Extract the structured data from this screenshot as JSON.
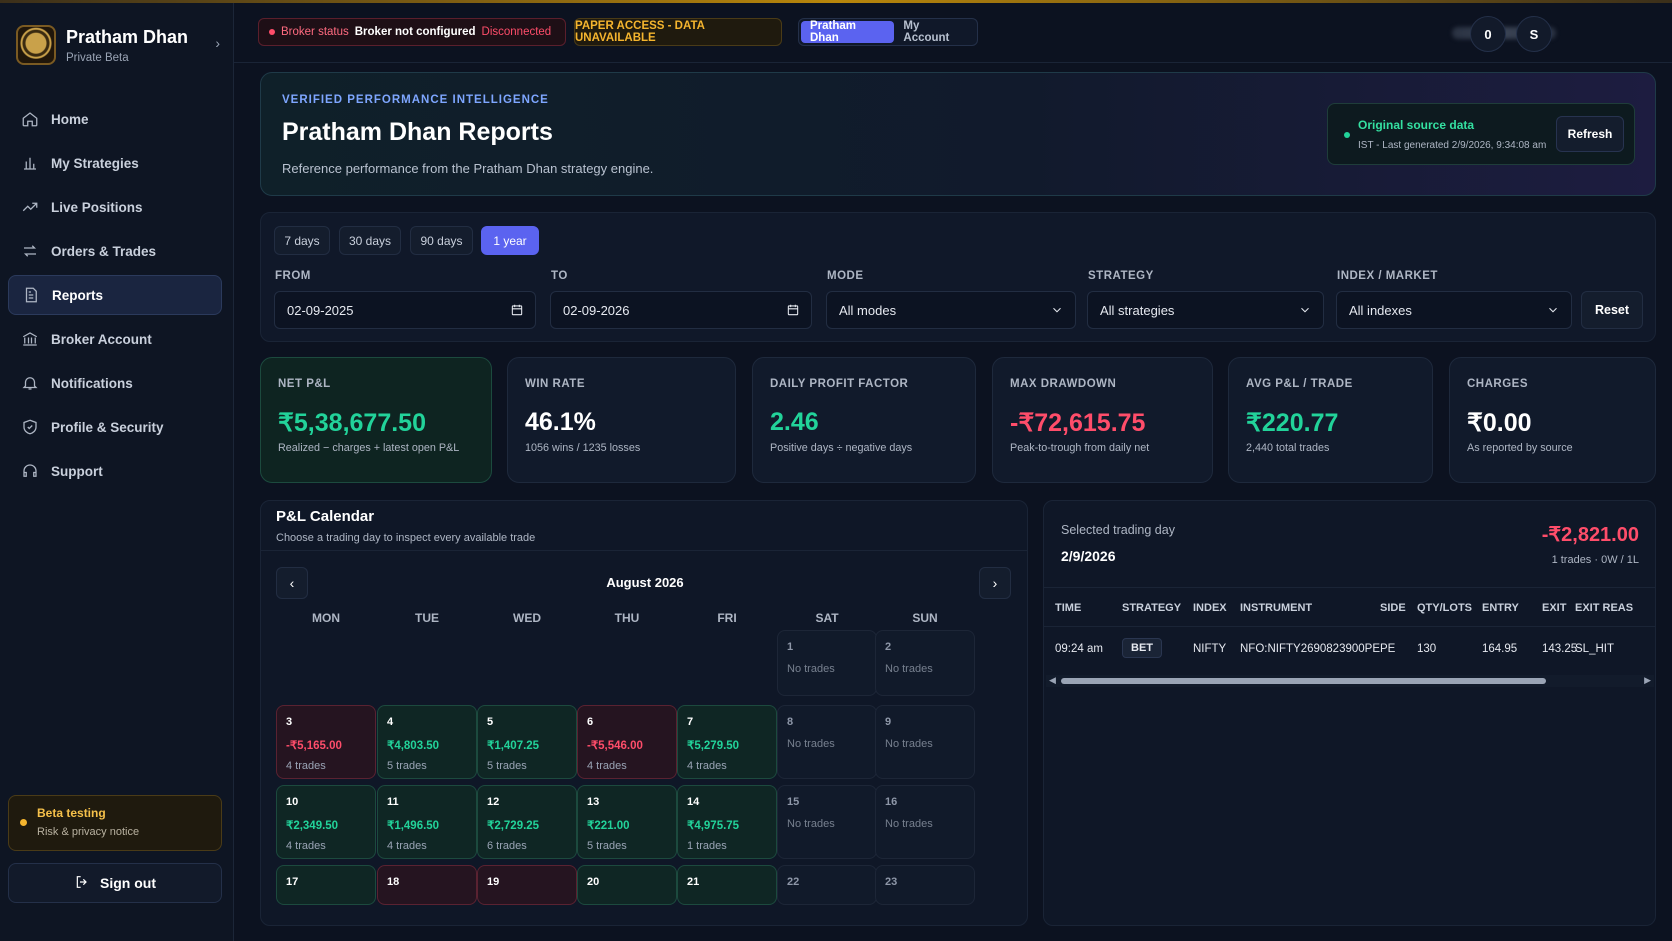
{
  "sidebar": {
    "brand": {
      "name": "Pratham Dhan",
      "sub": "Private Beta"
    },
    "items": [
      {
        "label": "Home",
        "icon": "home-icon"
      },
      {
        "label": "My Strategies",
        "icon": "bar-chart-icon"
      },
      {
        "label": "Live Positions",
        "icon": "trending-up-icon"
      },
      {
        "label": "Orders & Trades",
        "icon": "swap-icon"
      },
      {
        "label": "Reports",
        "icon": "document-icon",
        "active": true
      },
      {
        "label": "Broker Account",
        "icon": "bank-icon"
      },
      {
        "label": "Notifications",
        "icon": "bell-icon"
      },
      {
        "label": "Profile & Security",
        "icon": "shield-icon"
      },
      {
        "label": "Support",
        "icon": "headset-icon"
      }
    ],
    "beta": {
      "title": "Beta testing",
      "sub": "Risk & privacy notice"
    },
    "signout": "Sign out"
  },
  "topbar": {
    "broker_label": "Broker status",
    "broker_value": "Broker not configured",
    "broker_state": "Disconnected",
    "paper": "PAPER ACCESS - DATA UNAVAILABLE",
    "account_switch": [
      "Pratham Dhan",
      "My Account"
    ],
    "icon_button": "0",
    "avatar": "S"
  },
  "hero": {
    "kicker": "VERIFIED PERFORMANCE INTELLIGENCE",
    "title": "Pratham Dhan Reports",
    "subtitle": "Reference performance from the Pratham Dhan strategy engine.",
    "source_title": "Original source data",
    "source_sub": "IST - Last generated 2/9/2026, 9:34:08 am",
    "refresh": "Refresh"
  },
  "filters": {
    "ranges": [
      "7 days",
      "30 days",
      "90 days",
      "1 year"
    ],
    "active_range": "1 year",
    "from_label": "FROM",
    "from_value": "02-09-2025",
    "to_label": "TO",
    "to_value": "02-09-2026",
    "mode_label": "MODE",
    "mode_value": "All modes",
    "strategy_label": "STRATEGY",
    "strategy_value": "All strategies",
    "index_label": "INDEX / MARKET",
    "index_value": "All indexes",
    "reset": "Reset"
  },
  "kpis": [
    {
      "label": "NET P&L",
      "value": "₹5,38,677.50",
      "sub": "Realized − charges + latest open P&L",
      "color": "#22d39a"
    },
    {
      "label": "WIN RATE",
      "value": "46.1%",
      "sub": "1056 wins / 1235 losses",
      "color": "#ffffff"
    },
    {
      "label": "DAILY PROFIT FACTOR",
      "value": "2.46",
      "sub": "Positive days ÷ negative days",
      "color": "#22d39a"
    },
    {
      "label": "MAX DRAWDOWN",
      "value": "-₹72,615.75",
      "sub": "Peak-to-trough from daily net",
      "color": "#ff4d6a"
    },
    {
      "label": "AVG P&L / TRADE",
      "value": "₹220.77",
      "sub": "2,440 total trades",
      "color": "#22d39a"
    },
    {
      "label": "CHARGES",
      "value": "₹0.00",
      "sub": "As reported by source",
      "color": "#ffffff"
    }
  ],
  "calendar": {
    "title": "P&L Calendar",
    "subtitle": "Choose a trading day to inspect every available trade",
    "month": "August 2026",
    "weekdays": [
      "MON",
      "TUE",
      "WED",
      "THU",
      "FRI",
      "SAT",
      "SUN"
    ],
    "weeks": [
      [
        null,
        null,
        null,
        null,
        null,
        {
          "day": "1",
          "trades": "No trades",
          "type": "weekend"
        },
        {
          "day": "2",
          "trades": "No trades",
          "type": "weekend"
        }
      ],
      [
        {
          "day": "3",
          "amount": "-₹5,165.00",
          "trades": "4 trades",
          "type": "neg"
        },
        {
          "day": "4",
          "amount": "₹4,803.50",
          "trades": "5 trades",
          "type": "pos"
        },
        {
          "day": "5",
          "amount": "₹1,407.25",
          "trades": "5 trades",
          "type": "pos"
        },
        {
          "day": "6",
          "amount": "-₹5,546.00",
          "trades": "4 trades",
          "type": "neg"
        },
        {
          "day": "7",
          "amount": "₹5,279.50",
          "trades": "4 trades",
          "type": "pos"
        },
        {
          "day": "8",
          "trades": "No trades",
          "type": "weekend"
        },
        {
          "day": "9",
          "trades": "No trades",
          "type": "weekend"
        }
      ],
      [
        {
          "day": "10",
          "amount": "₹2,349.50",
          "trades": "4 trades",
          "type": "pos"
        },
        {
          "day": "11",
          "amount": "₹1,496.50",
          "trades": "4 trades",
          "type": "pos"
        },
        {
          "day": "12",
          "amount": "₹2,729.25",
          "trades": "6 trades",
          "type": "pos"
        },
        {
          "day": "13",
          "amount": "₹221.00",
          "trades": "5 trades",
          "type": "pos"
        },
        {
          "day": "14",
          "amount": "₹4,975.75",
          "trades": "1 trades",
          "type": "pos"
        },
        {
          "day": "15",
          "trades": "No trades",
          "type": "weekend"
        },
        {
          "day": "16",
          "trades": "No trades",
          "type": "weekend"
        }
      ],
      [
        {
          "day": "17",
          "type": "pos"
        },
        {
          "day": "18",
          "type": "neg"
        },
        {
          "day": "19",
          "type": "neg"
        },
        {
          "day": "20",
          "type": "pos"
        },
        {
          "day": "21",
          "type": "pos"
        },
        {
          "day": "22",
          "type": "weekend"
        },
        {
          "day": "23",
          "type": "weekend"
        }
      ]
    ]
  },
  "selected_day": {
    "label": "Selected trading day",
    "date": "2/9/2026",
    "pnl": "-₹2,821.00",
    "stats": "1 trades · 0W / 1L",
    "columns": [
      "TIME",
      "STRATEGY",
      "INDEX",
      "INSTRUMENT",
      "SIDE",
      "QTY/LOTS",
      "ENTRY",
      "EXIT",
      "EXIT REAS"
    ],
    "rows": [
      [
        "09:24 am",
        "BET",
        "NIFTY",
        "NFO:NIFTY2690823900PE",
        "PE",
        "130",
        "164.95",
        "143.25",
        "SL_HIT"
      ]
    ]
  }
}
